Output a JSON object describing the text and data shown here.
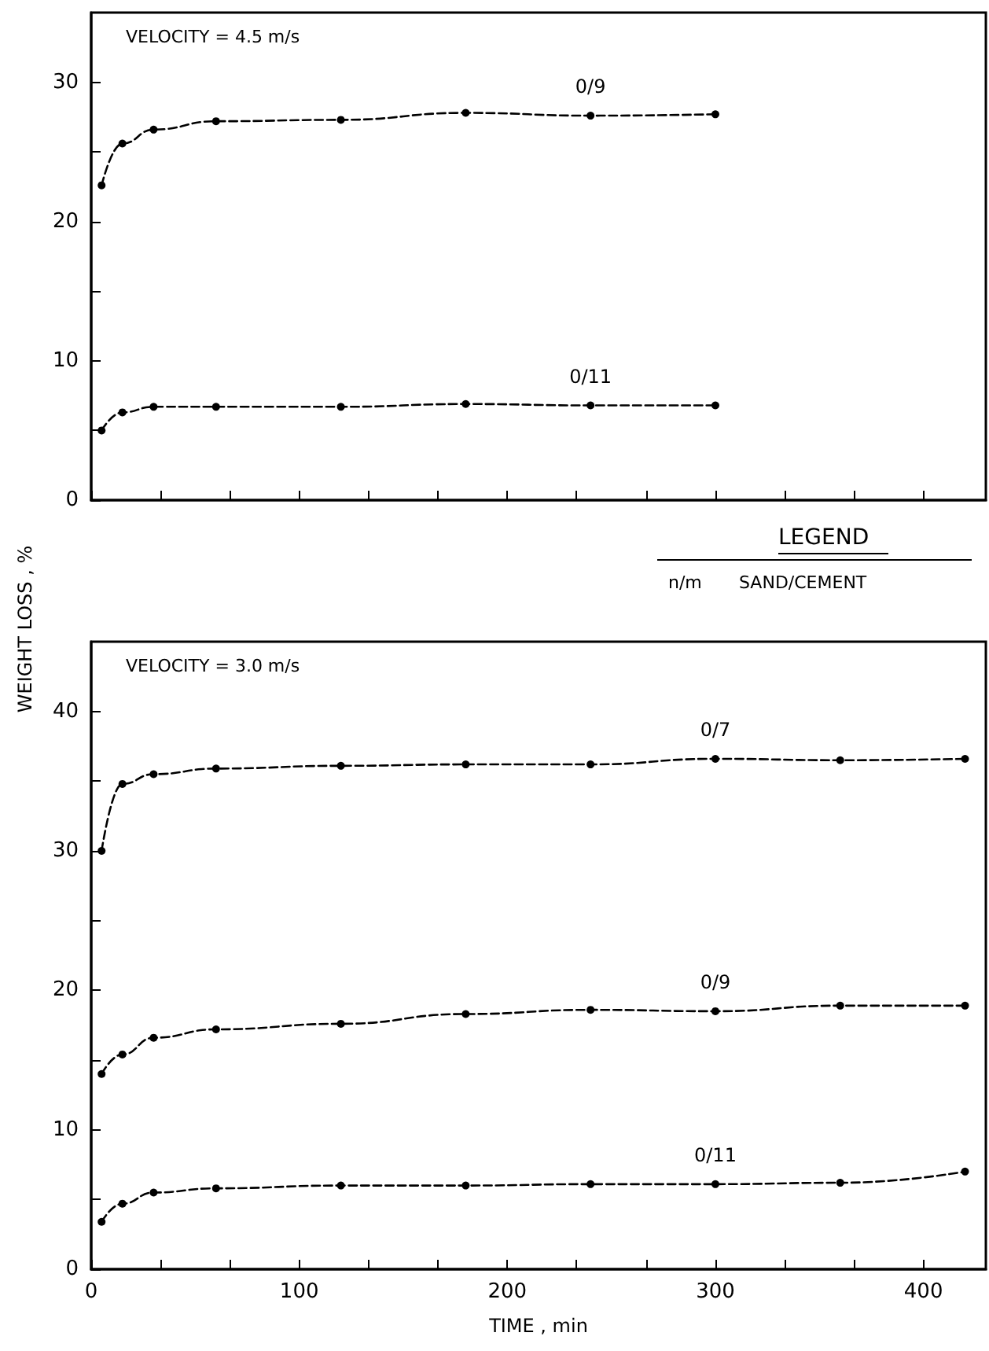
{
  "chart_data": [
    {
      "type": "line",
      "annotations": [
        "VELOCITY = 4.5 m/s"
      ],
      "tick_labels": "y",
      "marker": "circle",
      "line_style": "dashed",
      "x": [
        5,
        15,
        30,
        60,
        120,
        180,
        240,
        300
      ],
      "xlim": [
        0,
        430
      ],
      "xticks": [
        0,
        {
          "value": 33.3,
          "label": null
        },
        {
          "value": 66.7,
          "label": null
        },
        {
          "value": 100,
          "label": null
        },
        {
          "value": 133.3,
          "label": null
        },
        {
          "value": 166.7,
          "label": null
        },
        {
          "value": 200,
          "label": null
        },
        {
          "value": 233.3,
          "label": null
        },
        {
          "value": 266.7,
          "label": null
        },
        {
          "value": 300,
          "label": null
        },
        {
          "value": 333.3,
          "label": null
        },
        {
          "value": 366.7,
          "label": null
        },
        {
          "value": 400,
          "label": null
        }
      ],
      "ylim": [
        0,
        35
      ],
      "yticks": [
        0,
        {
          "value": 5,
          "label": null
        },
        10,
        {
          "value": 15,
          "label": null
        },
        20,
        {
          "value": 25,
          "label": null
        },
        30
      ],
      "series": [
        {
          "name": "0/9",
          "color": "#000000",
          "values": [
            22.6,
            25.6,
            26.6,
            27.2,
            27.3,
            27.8,
            27.6,
            27.7
          ]
        },
        {
          "name": "0/11",
          "color": "#000000",
          "values": [
            5.0,
            6.3,
            6.7,
            6.7,
            6.7,
            6.9,
            6.8,
            6.8
          ]
        }
      ]
    },
    {
      "type": "line",
      "xlabel": "TIME , min",
      "ylabel": "WEIGHT LOSS , %",
      "legend_title": "LEGEND",
      "annotations": [
        "VELOCITY = 3.0 m/s",
        "n/m",
        "SAND/CEMENT"
      ],
      "marker": "circle",
      "line_style": "dashed",
      "x": [
        5,
        15,
        30,
        60,
        120,
        180,
        240,
        300,
        360,
        420
      ],
      "xlim": [
        0,
        430
      ],
      "xticks": [
        0,
        {
          "value": 33.3,
          "label": null
        },
        {
          "value": 66.7,
          "label": null
        },
        100,
        {
          "value": 133.3,
          "label": null
        },
        {
          "value": 166.7,
          "label": null
        },
        200,
        {
          "value": 233.3,
          "label": null
        },
        {
          "value": 266.7,
          "label": null
        },
        300,
        {
          "value": 333.3,
          "label": null
        },
        {
          "value": 366.7,
          "label": null
        },
        400
      ],
      "ylim": [
        0,
        45
      ],
      "yticks": [
        0,
        {
          "value": 5,
          "label": null
        },
        10,
        {
          "value": 15,
          "label": null
        },
        20,
        {
          "value": 25,
          "label": null
        },
        30,
        {
          "value": 35,
          "label": null
        },
        40
      ],
      "series": [
        {
          "name": "0/7",
          "color": "#000000",
          "values": [
            30,
            34.8,
            35.5,
            35.9,
            36.1,
            36.2,
            36.2,
            36.6,
            36.5,
            36.6
          ]
        },
        {
          "name": "0/9",
          "color": "#000000",
          "values": [
            14,
            15.4,
            16.6,
            17.2,
            17.6,
            18.3,
            18.6,
            18.5,
            18.9,
            18.9
          ]
        },
        {
          "name": "0/11",
          "color": "#000000",
          "values": [
            3.4,
            4.7,
            5.5,
            5.8,
            6.0,
            6.0,
            6.1,
            6.1,
            6.2,
            7.0
          ]
        }
      ]
    }
  ]
}
